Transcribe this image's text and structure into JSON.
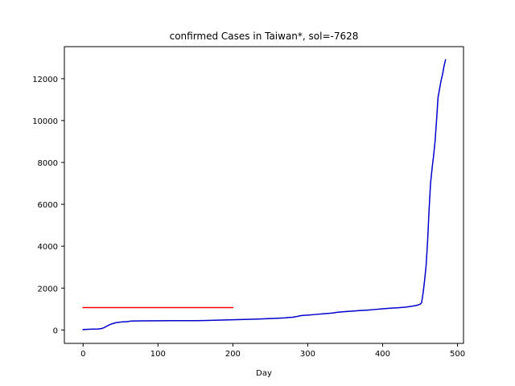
{
  "chart_data": {
    "type": "line",
    "title": "confirmed Cases in Taiwan*, sol=-7628",
    "xlabel": "Day",
    "ylabel": "",
    "xlim": [
      -25,
      508
    ],
    "ylim": [
      -640,
      13530
    ],
    "x_ticks": [
      0,
      100,
      200,
      300,
      400,
      500
    ],
    "y_ticks": [
      0,
      2000,
      4000,
      6000,
      8000,
      10000,
      12000
    ],
    "grid": false,
    "series": [
      {
        "color": "#0000cc",
        "x": [
          0,
          10,
          20,
          25,
          28,
          32,
          36,
          40,
          44,
          48,
          52,
          56,
          60,
          62,
          64,
          70,
          80,
          100,
          120,
          140,
          150,
          160,
          170,
          180,
          190,
          200,
          210,
          220,
          230,
          240,
          250,
          260,
          270,
          275,
          280,
          285,
          290,
          295,
          300,
          310,
          320,
          330,
          335,
          340,
          350,
          360,
          370,
          380,
          390,
          400,
          410,
          420,
          430,
          435,
          440,
          445,
          450,
          452,
          454,
          456,
          458,
          460,
          462,
          464,
          466,
          468,
          470,
          472,
          474,
          476,
          478,
          480,
          482,
          484
        ],
        "y": [
          20,
          35,
          45,
          70,
          110,
          190,
          260,
          310,
          350,
          370,
          385,
          393,
          400,
          418,
          425,
          430,
          435,
          440,
          443,
          445,
          447,
          450,
          458,
          468,
          480,
          490,
          497,
          505,
          515,
          530,
          545,
          560,
          580,
          600,
          610,
          640,
          680,
          700,
          710,
          740,
          770,
          800,
          820,
          850,
          875,
          900,
          930,
          950,
          980,
          1010,
          1040,
          1060,
          1090,
          1110,
          1140,
          1170,
          1230,
          1300,
          1750,
          2350,
          3050,
          4200,
          5700,
          7000,
          7700,
          8300,
          9000,
          10000,
          11100,
          11500,
          11900,
          12200,
          12600,
          12900
        ]
      },
      {
        "color": "#ff0000",
        "x": [
          0,
          200
        ],
        "y": [
          1070,
          1070
        ]
      }
    ]
  }
}
